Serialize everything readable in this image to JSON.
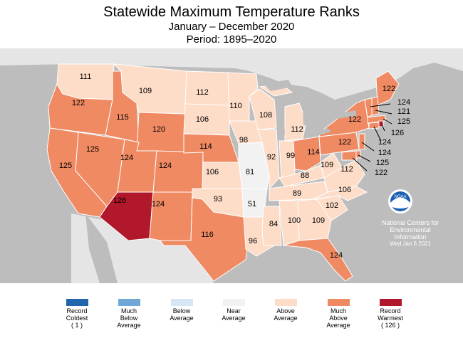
{
  "header": {
    "title": "Statewide Maximum Temperature Ranks",
    "date_range": "January – December 2020",
    "period": "Period: 1895–2020"
  },
  "colors": {
    "record_coldest": "#2166ac",
    "much_below": "#6fa8d6",
    "below": "#d6e6f5",
    "near": "#f2f2f2",
    "above": "#fddcc8",
    "much_above": "#ef8a62",
    "record_warmest": "#b2182b",
    "background": "#bdbdbd"
  },
  "states": {
    "WA": "111",
    "OR": "122",
    "CA": "125",
    "NV": "125",
    "ID": "115",
    "MT": "109",
    "WY": "120",
    "UT": "124",
    "AZ": "126",
    "CO": "124",
    "NM": "124",
    "ND": "112",
    "SD": "106",
    "NE": "114",
    "KS": "106",
    "OK": "93",
    "TX": "116",
    "MN": "110",
    "IA": "98",
    "MO": "81",
    "AR": "51",
    "LA": "96",
    "WI": "108",
    "IL": "92",
    "MS": "84",
    "MI": "112",
    "IN": "99",
    "OH": "114",
    "KY": "88",
    "TN": "89",
    "AL": "100",
    "GA": "109",
    "FL": "124",
    "SC": "102",
    "NC": "106",
    "VA": "112",
    "WV": "109",
    "PA": "122",
    "NY": "122",
    "ME": "122",
    "VT": "124",
    "NH": "121",
    "MA": "125",
    "RI": "126",
    "CT": "124",
    "NJ": "124",
    "DE": "125",
    "MD": "122"
  },
  "noaa": {
    "logo_text": "NOAA",
    "line1": "National Centers for",
    "line2": "Environmental",
    "line3": "Information",
    "date": "Wed Jan  6 2021"
  },
  "legend": [
    {
      "l1": "Record",
      "l2": "Coldest",
      "l3": "( 1 )",
      "color": "#2166ac"
    },
    {
      "l1": "Much",
      "l2": "Below",
      "l3": "Average",
      "color": "#6fa8d6"
    },
    {
      "l1": "Below",
      "l2": "Average",
      "l3": "",
      "color": "#d6e6f5"
    },
    {
      "l1": "Near",
      "l2": "Average",
      "l3": "",
      "color": "#f2f2f2"
    },
    {
      "l1": "Above",
      "l2": "Average",
      "l3": "",
      "color": "#fddcc8"
    },
    {
      "l1": "Much",
      "l2": "Above",
      "l3": "Average",
      "color": "#ef8a62"
    },
    {
      "l1": "Record",
      "l2": "Warmest",
      "l3": "( 126 )",
      "color": "#b2182b"
    }
  ]
}
